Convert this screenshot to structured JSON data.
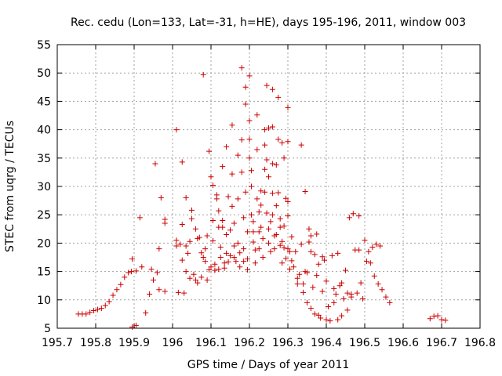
{
  "chart_data": {
    "type": "scatter",
    "title": "Rec. cedu (Lon=133, Lat=-31, h=HE), days 195-196, 2011, window 003",
    "xlabel": "GPS time / Days of year 2011",
    "ylabel": "STEC from uqrg / TECUs",
    "xlim": [
      195.7,
      196.8
    ],
    "ylim": [
      5,
      55
    ],
    "x_ticks": [
      195.7,
      195.8,
      195.9,
      196.0,
      196.1,
      196.2,
      196.3,
      196.4,
      196.5,
      196.6,
      196.7,
      196.8
    ],
    "x_tick_labels": [
      "195.7",
      "195.8",
      "195.9",
      "196",
      "196.1",
      "196.2",
      "196.3",
      "196.4",
      "196.5",
      "196.6",
      "196.7",
      "196.8"
    ],
    "y_ticks": [
      5,
      10,
      15,
      20,
      25,
      30,
      35,
      40,
      45,
      50,
      55
    ],
    "y_tick_labels": [
      "5",
      "10",
      "15",
      "20",
      "25",
      "30",
      "35",
      "40",
      "45",
      "50",
      "55"
    ],
    "grid": true,
    "marker": "+",
    "series": [
      {
        "color": "#cc0000",
        "points": [
          [
            195.755,
            7.5
          ],
          [
            195.765,
            7.5
          ],
          [
            195.775,
            7.5
          ],
          [
            195.785,
            7.8
          ],
          [
            195.795,
            8.1
          ],
          [
            195.805,
            8.3
          ],
          [
            195.815,
            8.5
          ],
          [
            195.825,
            9.0
          ],
          [
            195.835,
            9.7
          ],
          [
            195.845,
            10.8
          ],
          [
            195.855,
            11.8
          ],
          [
            195.865,
            12.7
          ],
          [
            195.875,
            14.0
          ],
          [
            195.885,
            14.8
          ],
          [
            195.893,
            15.0
          ],
          [
            195.895,
            17.2
          ],
          [
            195.905,
            15.1
          ],
          [
            195.915,
            24.5
          ],
          [
            195.92,
            15.8
          ],
          [
            195.93,
            7.7
          ],
          [
            195.94,
            11.0
          ],
          [
            195.945,
            15.4
          ],
          [
            195.95,
            13.5
          ],
          [
            195.955,
            34.0
          ],
          [
            195.96,
            14.8
          ],
          [
            195.965,
            19.0
          ],
          [
            195.965,
            11.8
          ],
          [
            195.97,
            28.0
          ],
          [
            195.98,
            11.5
          ],
          [
            195.98,
            24.2
          ],
          [
            195.98,
            23.5
          ],
          [
            195.895,
            5.2
          ],
          [
            195.905,
            5.5
          ],
          [
            196.01,
            40.0
          ],
          [
            196.01,
            19.5
          ],
          [
            196.01,
            20.5
          ],
          [
            196.015,
            11.3
          ],
          [
            196.02,
            19.8
          ],
          [
            196.025,
            34.3
          ],
          [
            196.025,
            17.0
          ],
          [
            196.025,
            23.3
          ],
          [
            196.03,
            11.2
          ],
          [
            196.035,
            28.0
          ],
          [
            196.035,
            19.5
          ],
          [
            196.035,
            15.0
          ],
          [
            196.04,
            18.2
          ],
          [
            196.045,
            20.3
          ],
          [
            196.045,
            13.8
          ],
          [
            196.05,
            25.8
          ],
          [
            196.05,
            24.3
          ],
          [
            196.055,
            14.5
          ],
          [
            196.06,
            22.5
          ],
          [
            196.06,
            13.5
          ],
          [
            196.065,
            20.8
          ],
          [
            196.065,
            13.0
          ],
          [
            196.07,
            21.0
          ],
          [
            196.075,
            14.0
          ],
          [
            196.075,
            18.3
          ],
          [
            196.08,
            49.7
          ],
          [
            196.08,
            17.5
          ],
          [
            196.085,
            19.0
          ],
          [
            196.085,
            16.8
          ],
          [
            196.09,
            21.3
          ],
          [
            196.09,
            13.5
          ],
          [
            196.095,
            36.2
          ],
          [
            196.095,
            15.3
          ],
          [
            196.1,
            31.7
          ],
          [
            196.1,
            15.8
          ],
          [
            196.105,
            30.2
          ],
          [
            196.105,
            24.0
          ],
          [
            196.105,
            20.4
          ],
          [
            196.11,
            16.3
          ],
          [
            196.11,
            15.2
          ],
          [
            196.115,
            28.5
          ],
          [
            196.115,
            27.8
          ],
          [
            196.12,
            25.7
          ],
          [
            196.12,
            22.8
          ],
          [
            196.12,
            15.4
          ],
          [
            196.125,
            19.3
          ],
          [
            196.125,
            17.5
          ],
          [
            196.13,
            33.5
          ],
          [
            196.13,
            24.0
          ],
          [
            196.13,
            22.8
          ],
          [
            196.135,
            16.5
          ],
          [
            196.135,
            15.6
          ],
          [
            196.14,
            37.0
          ],
          [
            196.14,
            21.5
          ],
          [
            196.14,
            18.2
          ],
          [
            196.145,
            28.2
          ],
          [
            196.145,
            16.7
          ],
          [
            196.15,
            22.3
          ],
          [
            196.15,
            17.8
          ],
          [
            196.155,
            40.8
          ],
          [
            196.155,
            32.2
          ],
          [
            196.155,
            26.5
          ],
          [
            196.16,
            23.5
          ],
          [
            196.16,
            19.5
          ],
          [
            196.16,
            17.5
          ],
          [
            196.165,
            16.8
          ],
          [
            196.17,
            35.5
          ],
          [
            196.17,
            27.8
          ],
          [
            196.17,
            20.0
          ],
          [
            196.175,
            18.3
          ],
          [
            196.175,
            15.8
          ],
          [
            196.18,
            50.9
          ],
          [
            196.18,
            38.2
          ],
          [
            196.18,
            32.5
          ],
          [
            196.185,
            24.5
          ],
          [
            196.185,
            19.0
          ],
          [
            196.185,
            16.8
          ],
          [
            196.19,
            47.5
          ],
          [
            196.19,
            44.5
          ],
          [
            196.19,
            29.0
          ],
          [
            196.195,
            22.0
          ],
          [
            196.195,
            17.2
          ],
          [
            196.195,
            15.3
          ],
          [
            196.2,
            49.5
          ],
          [
            196.2,
            41.6
          ],
          [
            196.2,
            38.3
          ],
          [
            196.2,
            35.0
          ],
          [
            196.205,
            32.8
          ],
          [
            196.205,
            30.0
          ],
          [
            196.205,
            25.0
          ],
          [
            196.21,
            23.8
          ],
          [
            196.21,
            22.0
          ],
          [
            196.21,
            20.2
          ],
          [
            196.215,
            18.8
          ],
          [
            196.215,
            16.5
          ],
          [
            196.22,
            42.6
          ],
          [
            196.22,
            36.5
          ],
          [
            196.22,
            27.8
          ],
          [
            196.225,
            25.5
          ],
          [
            196.225,
            22.0
          ],
          [
            196.225,
            19.0
          ],
          [
            196.23,
            29.2
          ],
          [
            196.23,
            26.7
          ],
          [
            196.23,
            22.8
          ],
          [
            196.235,
            20.8
          ],
          [
            196.235,
            17.5
          ],
          [
            196.24,
            40.0
          ],
          [
            196.24,
            37.3
          ],
          [
            196.24,
            33.0
          ],
          [
            196.24,
            29.0
          ],
          [
            196.245,
            47.8
          ],
          [
            196.245,
            34.7
          ],
          [
            196.245,
            25.3
          ],
          [
            196.25,
            40.3
          ],
          [
            196.25,
            31.7
          ],
          [
            196.25,
            22.5
          ],
          [
            196.25,
            20.0
          ],
          [
            196.255,
            23.8
          ],
          [
            196.255,
            18.5
          ],
          [
            196.26,
            47.1
          ],
          [
            196.26,
            40.5
          ],
          [
            196.26,
            34.0
          ],
          [
            196.26,
            28.8
          ],
          [
            196.26,
            25.0
          ],
          [
            196.265,
            21.3
          ],
          [
            196.265,
            19.0
          ],
          [
            196.27,
            33.8
          ],
          [
            196.27,
            26.6
          ],
          [
            196.27,
            21.5
          ],
          [
            196.275,
            45.7
          ],
          [
            196.275,
            38.3
          ],
          [
            196.275,
            28.9
          ],
          [
            196.28,
            24.3
          ],
          [
            196.28,
            22.8
          ],
          [
            196.28,
            19.6
          ],
          [
            196.285,
            37.7
          ],
          [
            196.285,
            20.3
          ],
          [
            196.285,
            16.5
          ],
          [
            196.29,
            35.0
          ],
          [
            196.29,
            23.0
          ],
          [
            196.29,
            19.2
          ],
          [
            196.295,
            27.9
          ],
          [
            196.295,
            17.3
          ],
          [
            196.3,
            43.9
          ],
          [
            196.3,
            37.9
          ],
          [
            196.3,
            27.3
          ],
          [
            196.3,
            24.8
          ],
          [
            196.3,
            19.0
          ],
          [
            196.305,
            18.5
          ],
          [
            196.305,
            15.4
          ],
          [
            196.31,
            21.1
          ],
          [
            196.31,
            16.9
          ],
          [
            196.315,
            15.8
          ],
          [
            196.32,
            18.5
          ],
          [
            196.325,
            13.8
          ],
          [
            196.325,
            12.8
          ],
          [
            196.33,
            14.5
          ],
          [
            196.335,
            37.3
          ],
          [
            196.335,
            19.8
          ],
          [
            196.34,
            12.8
          ],
          [
            196.34,
            11.3
          ],
          [
            196.345,
            29.1
          ],
          [
            196.345,
            15.0
          ],
          [
            196.35,
            14.8
          ],
          [
            196.35,
            9.5
          ],
          [
            196.355,
            22.5
          ],
          [
            196.355,
            20.2
          ],
          [
            196.36,
            21.3
          ],
          [
            196.36,
            18.5
          ],
          [
            196.36,
            8.5
          ],
          [
            196.365,
            12.2
          ],
          [
            196.37,
            18.0
          ],
          [
            196.37,
            7.5
          ],
          [
            196.375,
            21.6
          ],
          [
            196.375,
            14.3
          ],
          [
            196.38,
            7.3
          ],
          [
            196.38,
            16.3
          ],
          [
            196.385,
            6.8
          ],
          [
            196.39,
            17.6
          ],
          [
            196.39,
            11.5
          ],
          [
            196.395,
            17.0
          ],
          [
            196.4,
            13.3
          ],
          [
            196.4,
            6.5
          ],
          [
            196.405,
            8.8
          ],
          [
            196.41,
            6.3
          ],
          [
            196.415,
            17.8
          ],
          [
            196.42,
            9.5
          ],
          [
            196.42,
            12.0
          ],
          [
            196.425,
            11.0
          ],
          [
            196.43,
            18.2
          ],
          [
            196.43,
            6.5
          ],
          [
            196.435,
            12.5
          ],
          [
            196.44,
            13.0
          ],
          [
            196.44,
            7.2
          ],
          [
            196.445,
            10.2
          ],
          [
            196.45,
            15.2
          ],
          [
            196.455,
            11.2
          ],
          [
            196.455,
            8.2
          ],
          [
            196.46,
            24.5
          ],
          [
            196.465,
            11.0
          ],
          [
            196.465,
            10.5
          ],
          [
            196.47,
            25.2
          ],
          [
            196.475,
            18.8
          ],
          [
            196.48,
            11.2
          ],
          [
            196.485,
            24.8
          ],
          [
            196.485,
            18.8
          ],
          [
            196.49,
            13.0
          ],
          [
            196.495,
            10.2
          ],
          [
            196.5,
            20.5
          ],
          [
            196.505,
            16.8
          ],
          [
            196.51,
            18.5
          ],
          [
            196.515,
            16.5
          ],
          [
            196.52,
            19.3
          ],
          [
            196.525,
            14.2
          ],
          [
            196.53,
            19.8
          ],
          [
            196.535,
            12.8
          ],
          [
            196.54,
            19.5
          ],
          [
            196.545,
            11.8
          ],
          [
            196.555,
            10.5
          ],
          [
            196.565,
            9.5
          ],
          [
            196.67,
            6.7
          ],
          [
            196.68,
            7.1
          ],
          [
            196.69,
            7.2
          ],
          [
            196.7,
            6.5
          ],
          [
            196.71,
            6.4
          ]
        ]
      }
    ]
  }
}
